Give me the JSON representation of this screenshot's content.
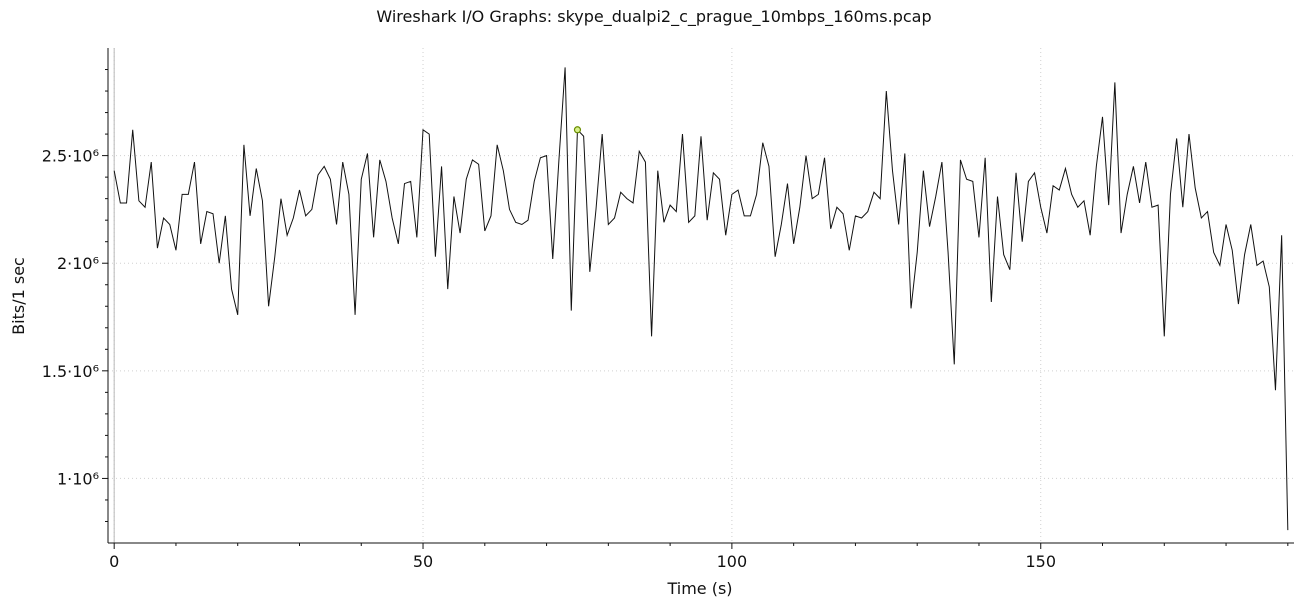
{
  "chart_data": {
    "type": "line",
    "title": "Wireshark I/O Graphs: skype_dualpi2_c_prague_10mbps_160ms.pcap",
    "xlabel": "Time (s)",
    "ylabel": "Bits/1 sec",
    "xlim": [
      -1,
      191
    ],
    "ylim": [
      700000,
      3000000
    ],
    "grid": true,
    "legend": "none",
    "colors": {
      "line": "#111111",
      "grid": "#d0d0d0",
      "axis": "#111111",
      "highlight_stroke": "#6a8d00",
      "highlight_fill": "#d7f08a"
    },
    "x_ticks": [
      {
        "value": 0,
        "label": "0"
      },
      {
        "value": 50,
        "label": "50"
      },
      {
        "value": 100,
        "label": "100"
      },
      {
        "value": 150,
        "label": "150"
      }
    ],
    "y_ticks": [
      {
        "value": 1000000,
        "label": "1·10⁶"
      },
      {
        "value": 1500000,
        "label": "1.5·10⁶"
      },
      {
        "value": 2000000,
        "label": "2·10⁶"
      },
      {
        "value": 2500000,
        "label": "2.5·10⁶"
      }
    ],
    "series": [
      {
        "values": [
          [
            0,
            2430000
          ],
          [
            1,
            2280000
          ],
          [
            2,
            2280000
          ],
          [
            3,
            2620000
          ],
          [
            4,
            2290000
          ],
          [
            5,
            2260000
          ],
          [
            6,
            2470000
          ],
          [
            7,
            2070000
          ],
          [
            8,
            2210000
          ],
          [
            9,
            2180000
          ],
          [
            10,
            2060000
          ],
          [
            11,
            2320000
          ],
          [
            12,
            2320000
          ],
          [
            13,
            2470000
          ],
          [
            14,
            2090000
          ],
          [
            15,
            2240000
          ],
          [
            16,
            2230000
          ],
          [
            17,
            2000000
          ],
          [
            18,
            2220000
          ],
          [
            19,
            1880000
          ],
          [
            20,
            1760000
          ],
          [
            21,
            2550000
          ],
          [
            22,
            2220000
          ],
          [
            23,
            2440000
          ],
          [
            24,
            2290000
          ],
          [
            25,
            1800000
          ],
          [
            26,
            2030000
          ],
          [
            27,
            2300000
          ],
          [
            28,
            2130000
          ],
          [
            29,
            2210000
          ],
          [
            30,
            2340000
          ],
          [
            31,
            2220000
          ],
          [
            32,
            2250000
          ],
          [
            33,
            2410000
          ],
          [
            34,
            2450000
          ],
          [
            35,
            2390000
          ],
          [
            36,
            2180000
          ],
          [
            37,
            2470000
          ],
          [
            38,
            2320000
          ],
          [
            39,
            1760000
          ],
          [
            40,
            2390000
          ],
          [
            41,
            2510000
          ],
          [
            42,
            2120000
          ],
          [
            43,
            2480000
          ],
          [
            44,
            2380000
          ],
          [
            45,
            2210000
          ],
          [
            46,
            2090000
          ],
          [
            47,
            2370000
          ],
          [
            48,
            2380000
          ],
          [
            49,
            2120000
          ],
          [
            50,
            2620000
          ],
          [
            51,
            2600000
          ],
          [
            52,
            2030000
          ],
          [
            53,
            2450000
          ],
          [
            54,
            1880000
          ],
          [
            55,
            2310000
          ],
          [
            56,
            2140000
          ],
          [
            57,
            2390000
          ],
          [
            58,
            2480000
          ],
          [
            59,
            2460000
          ],
          [
            60,
            2150000
          ],
          [
            61,
            2220000
          ],
          [
            62,
            2550000
          ],
          [
            63,
            2430000
          ],
          [
            64,
            2250000
          ],
          [
            65,
            2190000
          ],
          [
            66,
            2180000
          ],
          [
            67,
            2200000
          ],
          [
            68,
            2380000
          ],
          [
            69,
            2490000
          ],
          [
            70,
            2500000
          ],
          [
            71,
            2020000
          ],
          [
            72,
            2480000
          ],
          [
            73,
            2910000
          ],
          [
            74,
            1780000
          ],
          [
            75,
            2620000
          ],
          [
            76,
            2590000
          ],
          [
            77,
            1960000
          ],
          [
            78,
            2250000
          ],
          [
            79,
            2600000
          ],
          [
            80,
            2180000
          ],
          [
            81,
            2210000
          ],
          [
            82,
            2330000
          ],
          [
            83,
            2300000
          ],
          [
            84,
            2280000
          ],
          [
            85,
            2520000
          ],
          [
            86,
            2470000
          ],
          [
            87,
            1660000
          ],
          [
            88,
            2430000
          ],
          [
            89,
            2190000
          ],
          [
            90,
            2270000
          ],
          [
            91,
            2240000
          ],
          [
            92,
            2600000
          ],
          [
            93,
            2190000
          ],
          [
            94,
            2220000
          ],
          [
            95,
            2590000
          ],
          [
            96,
            2200000
          ],
          [
            97,
            2420000
          ],
          [
            98,
            2390000
          ],
          [
            99,
            2130000
          ],
          [
            100,
            2320000
          ],
          [
            101,
            2340000
          ],
          [
            102,
            2220000
          ],
          [
            103,
            2220000
          ],
          [
            104,
            2320000
          ],
          [
            105,
            2560000
          ],
          [
            106,
            2450000
          ],
          [
            107,
            2030000
          ],
          [
            108,
            2180000
          ],
          [
            109,
            2370000
          ],
          [
            110,
            2090000
          ],
          [
            111,
            2260000
          ],
          [
            112,
            2500000
          ],
          [
            113,
            2300000
          ],
          [
            114,
            2320000
          ],
          [
            115,
            2490000
          ],
          [
            116,
            2160000
          ],
          [
            117,
            2260000
          ],
          [
            118,
            2230000
          ],
          [
            119,
            2060000
          ],
          [
            120,
            2220000
          ],
          [
            121,
            2210000
          ],
          [
            122,
            2240000
          ],
          [
            123,
            2330000
          ],
          [
            124,
            2300000
          ],
          [
            125,
            2800000
          ],
          [
            126,
            2430000
          ],
          [
            127,
            2180000
          ],
          [
            128,
            2510000
          ],
          [
            129,
            1790000
          ],
          [
            130,
            2050000
          ],
          [
            131,
            2430000
          ],
          [
            132,
            2170000
          ],
          [
            133,
            2310000
          ],
          [
            134,
            2470000
          ],
          [
            135,
            2050000
          ],
          [
            136,
            1530000
          ],
          [
            137,
            2480000
          ],
          [
            138,
            2390000
          ],
          [
            139,
            2380000
          ],
          [
            140,
            2120000
          ],
          [
            141,
            2490000
          ],
          [
            142,
            1820000
          ],
          [
            143,
            2310000
          ],
          [
            144,
            2040000
          ],
          [
            145,
            1970000
          ],
          [
            146,
            2420000
          ],
          [
            147,
            2100000
          ],
          [
            148,
            2380000
          ],
          [
            149,
            2420000
          ],
          [
            150,
            2260000
          ],
          [
            151,
            2140000
          ],
          [
            152,
            2360000
          ],
          [
            153,
            2340000
          ],
          [
            154,
            2440000
          ],
          [
            155,
            2320000
          ],
          [
            156,
            2260000
          ],
          [
            157,
            2290000
          ],
          [
            158,
            2130000
          ],
          [
            159,
            2450000
          ],
          [
            160,
            2680000
          ],
          [
            161,
            2270000
          ],
          [
            162,
            2840000
          ],
          [
            163,
            2140000
          ],
          [
            164,
            2320000
          ],
          [
            165,
            2450000
          ],
          [
            166,
            2280000
          ],
          [
            167,
            2470000
          ],
          [
            168,
            2260000
          ],
          [
            169,
            2270000
          ],
          [
            170,
            1660000
          ],
          [
            171,
            2320000
          ],
          [
            172,
            2580000
          ],
          [
            173,
            2260000
          ],
          [
            174,
            2600000
          ],
          [
            175,
            2350000
          ],
          [
            176,
            2210000
          ],
          [
            177,
            2240000
          ],
          [
            178,
            2050000
          ],
          [
            179,
            1990000
          ],
          [
            180,
            2180000
          ],
          [
            181,
            2060000
          ],
          [
            182,
            1810000
          ],
          [
            183,
            2040000
          ],
          [
            184,
            2180000
          ],
          [
            185,
            1990000
          ],
          [
            186,
            2010000
          ],
          [
            187,
            1890000
          ],
          [
            188,
            1410000
          ],
          [
            189,
            2130000
          ],
          [
            190,
            760000
          ]
        ]
      }
    ],
    "highlighted_point": {
      "x": 75,
      "y": 2620000
    }
  }
}
